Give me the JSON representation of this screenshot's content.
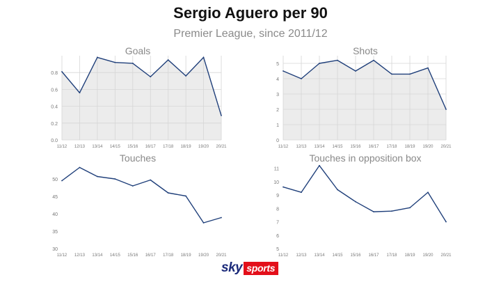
{
  "header": {
    "title": "Sergio Aguero per 90",
    "subtitle": "Premier League, since 2011/12"
  },
  "footer": {
    "logo_sky": "sky",
    "logo_sports": "sports"
  },
  "colors": {
    "line": "#1f3f7a",
    "area": "#ececec",
    "grid": "#d6d6d6",
    "axis_text": "#777777",
    "panel_title": "#888888"
  },
  "chart_data": [
    {
      "type": "area",
      "title": "Goals",
      "x": [
        "11/12",
        "12/13",
        "13/14",
        "14/15",
        "15/16",
        "16/17",
        "17/18",
        "18/19",
        "19/20",
        "20/21"
      ],
      "values": [
        0.81,
        0.56,
        0.98,
        0.92,
        0.91,
        0.75,
        0.95,
        0.76,
        0.98,
        0.29
      ],
      "ylim": [
        0,
        1.0
      ],
      "yticks": [
        "0.0",
        "0.2",
        "0.4",
        "0.6",
        "0.8"
      ],
      "grid": true
    },
    {
      "type": "area",
      "title": "Shots",
      "x": [
        "11/12",
        "12/13",
        "13/14",
        "14/15",
        "15/16",
        "16/17",
        "17/18",
        "18/19",
        "19/20",
        "20/21"
      ],
      "values": [
        4.5,
        4.0,
        5.0,
        5.2,
        4.5,
        5.2,
        4.3,
        4.3,
        4.7,
        2.0
      ],
      "ylim": [
        0,
        5.5
      ],
      "yticks": [
        "0",
        "1",
        "2",
        "3",
        "4",
        "5"
      ],
      "grid": true
    },
    {
      "type": "line",
      "title": "Touches",
      "x": [
        "11/12",
        "12/13",
        "13/14",
        "14/15",
        "15/16",
        "16/17",
        "17/18",
        "18/19",
        "19/20",
        "20/21"
      ],
      "values": [
        49.5,
        53.3,
        50.7,
        50.0,
        48.0,
        49.7,
        46.0,
        45.1,
        37.4,
        38.9
      ],
      "ylim": [
        30,
        55
      ],
      "yticks": [
        "30",
        "35",
        "40",
        "45",
        "50"
      ],
      "grid": false
    },
    {
      "type": "line",
      "title": "Touches in opposition box",
      "x": [
        "11/12",
        "12/13",
        "13/14",
        "14/15",
        "15/16",
        "16/17",
        "17/18",
        "18/19",
        "19/20",
        "20/21"
      ],
      "values": [
        9.6,
        9.2,
        11.2,
        9.4,
        8.5,
        7.75,
        7.8,
        8.05,
        9.2,
        7.0
      ],
      "ylim": [
        5,
        11.5
      ],
      "yticks": [
        "5",
        "6",
        "7",
        "8",
        "9",
        "10",
        "11"
      ],
      "grid": false
    }
  ]
}
